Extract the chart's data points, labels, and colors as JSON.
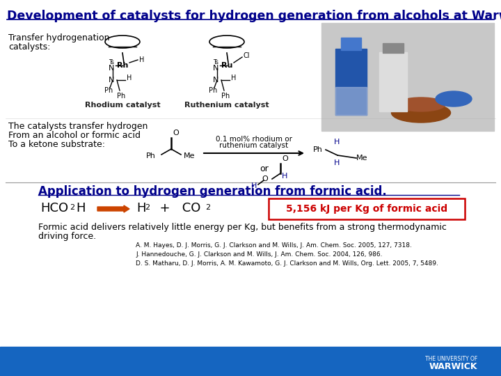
{
  "title": "Development of catalysts for hydrogen generation from alcohols at Warwick.",
  "title_color": "#00008B",
  "title_fontsize": 13,
  "bg_color": "#FFFFFF",
  "transfer_label_line1": "Transfer hydrogenation",
  "transfer_label_line2": "catalysts:",
  "rhodium_label": "Rhodium catalyst",
  "ruthenium_label": "Ruthenium catalyst",
  "catalysts_text_line1": "The catalysts transfer hydrogen",
  "catalysts_text_line2": "From an alcohol or formic acid",
  "catalysts_text_line3": "To a ketone substrate:",
  "app_title": "Application to hydrogen generation from formic acid.",
  "app_title_color": "#00008B",
  "energy_box_text": "5,156 kJ per Kg of formic acid",
  "energy_box_color": "#CC0000",
  "formic_line1": "Formic acid delivers relatively little energy per Kg, but benefits from a strong thermodynamic",
  "formic_line2": "driving force.",
  "ref1": "A. M. Hayes, D. J. Morris, G. J. Clarkson and M. Wills, J. Am. Chem. Soc. 2005, 127, 7318.",
  "ref2": "J. Hannedouche, G. J. Clarkson and M. Wills, J. Am. Chem. Soc. 2004, 126, 986.",
  "ref3": "D. S. Matharu, D. J. Morris, A. M. Kawamoto, G. J. Clarkson and M. Wills, Org. Lett. 2005, 7, 5489.",
  "warwick_blue": "#1565C0",
  "dark_navy": "#00008B",
  "catalyst_arrow_label1": "0.1 mol% rhodium or",
  "catalyst_arrow_label2": "ruthenium catalyst"
}
